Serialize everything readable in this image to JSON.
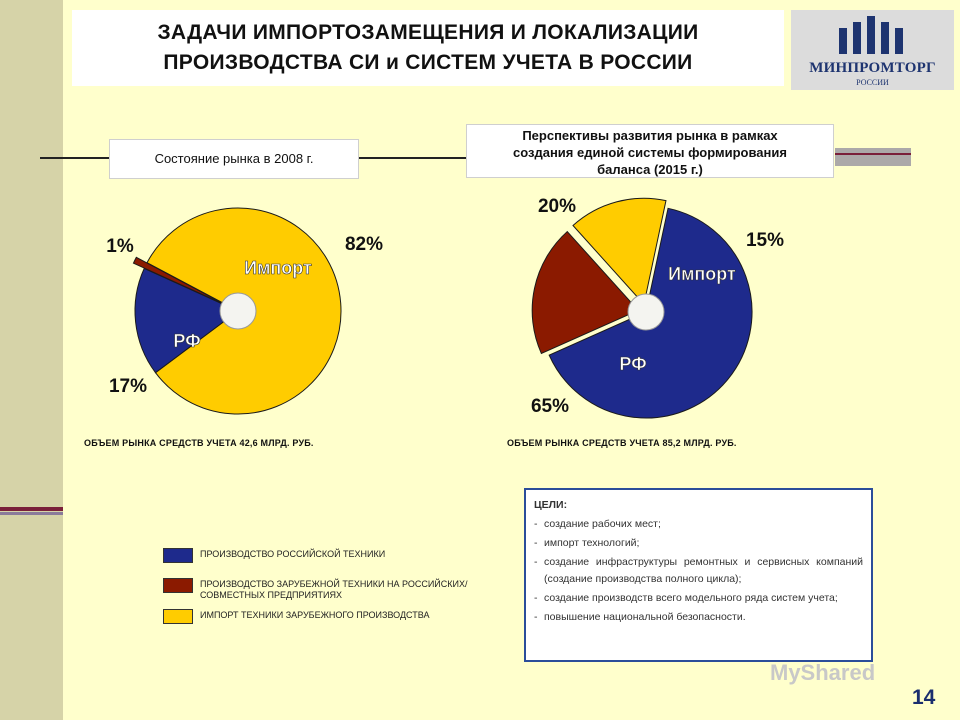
{
  "title": "ЗАДАЧИ ИМПОРТОЗАМЕЩЕНИЯ И ЛОКАЛИЗАЦИИ\nПРОИЗВОДСТВА  СИ и СИСТЕМ УЧЕТА В РОССИИ",
  "logo": {
    "name": "МИНПРОМТОРГ",
    "sub": "РОССИИ"
  },
  "colors": {
    "rf": "#1e2a8c",
    "foreign_local": "#8b1a00",
    "import": "#ffcc00",
    "goals_border": "#2b4d9a"
  },
  "chart_data": [
    {
      "type": "pie",
      "title": "Состояние рынка в 2008 г.",
      "slices": [
        {
          "label": "Импорт",
          "value": 82,
          "value_label": "82%",
          "color": "#ffcc00"
        },
        {
          "label": "РФ",
          "value": 17,
          "value_label": "17%",
          "color": "#1e2a8c"
        },
        {
          "label": "",
          "value": 1,
          "value_label": "1%",
          "color": "#8b1a00"
        }
      ],
      "footer": "ОБЪЕМ РЫНКА СРЕДСТВ УЧЕТА 42,6 МЛРД. РУБ."
    },
    {
      "type": "pie",
      "title": "Перспективы развития рынка в рамках\nсоздания единой системы формирования\nбаланса (2015 г.)",
      "slices": [
        {
          "label": "Импорт",
          "value": 15,
          "value_label": "15%",
          "color": "#ffcc00"
        },
        {
          "label": "РФ",
          "value": 65,
          "value_label": "65%",
          "color": "#1e2a8c"
        },
        {
          "label": "",
          "value": 20,
          "value_label": "20%",
          "color": "#8b1a00"
        }
      ],
      "footer": "ОБЪЕМ РЫНКА СРЕДСТВ УЧЕТА  85,2 МЛРД. РУБ."
    }
  ],
  "legend": [
    {
      "label": "ПРОИЗВОДСТВО РОССИЙСКОЙ ТЕХНИКИ",
      "color": "#1e2a8c"
    },
    {
      "label": "ПРОИЗВОДСТВО ЗАРУБЕЖНОЙ ТЕХНИКИ НА РОССИЙСКИХ/СОВМЕСТНЫХ ПРЕДПРИЯТИЯХ",
      "color": "#8b1a00"
    },
    {
      "label": "ИМПОРТ ТЕХНИКИ ЗАРУБЕЖНОГО ПРОИЗВОДСТВА",
      "color": "#ffcc00"
    }
  ],
  "goals": {
    "title": "ЦЕЛИ:",
    "items": [
      "создание рабочих мест;",
      "импорт технологий;",
      "создание инфраструктуры ремонтных и сервисных компаний (создание производства полного цикла);",
      "создание производств всего модельного ряда систем учета;",
      "повышение национальной безопасности."
    ]
  },
  "page_number": "14",
  "watermark": "MyShared"
}
